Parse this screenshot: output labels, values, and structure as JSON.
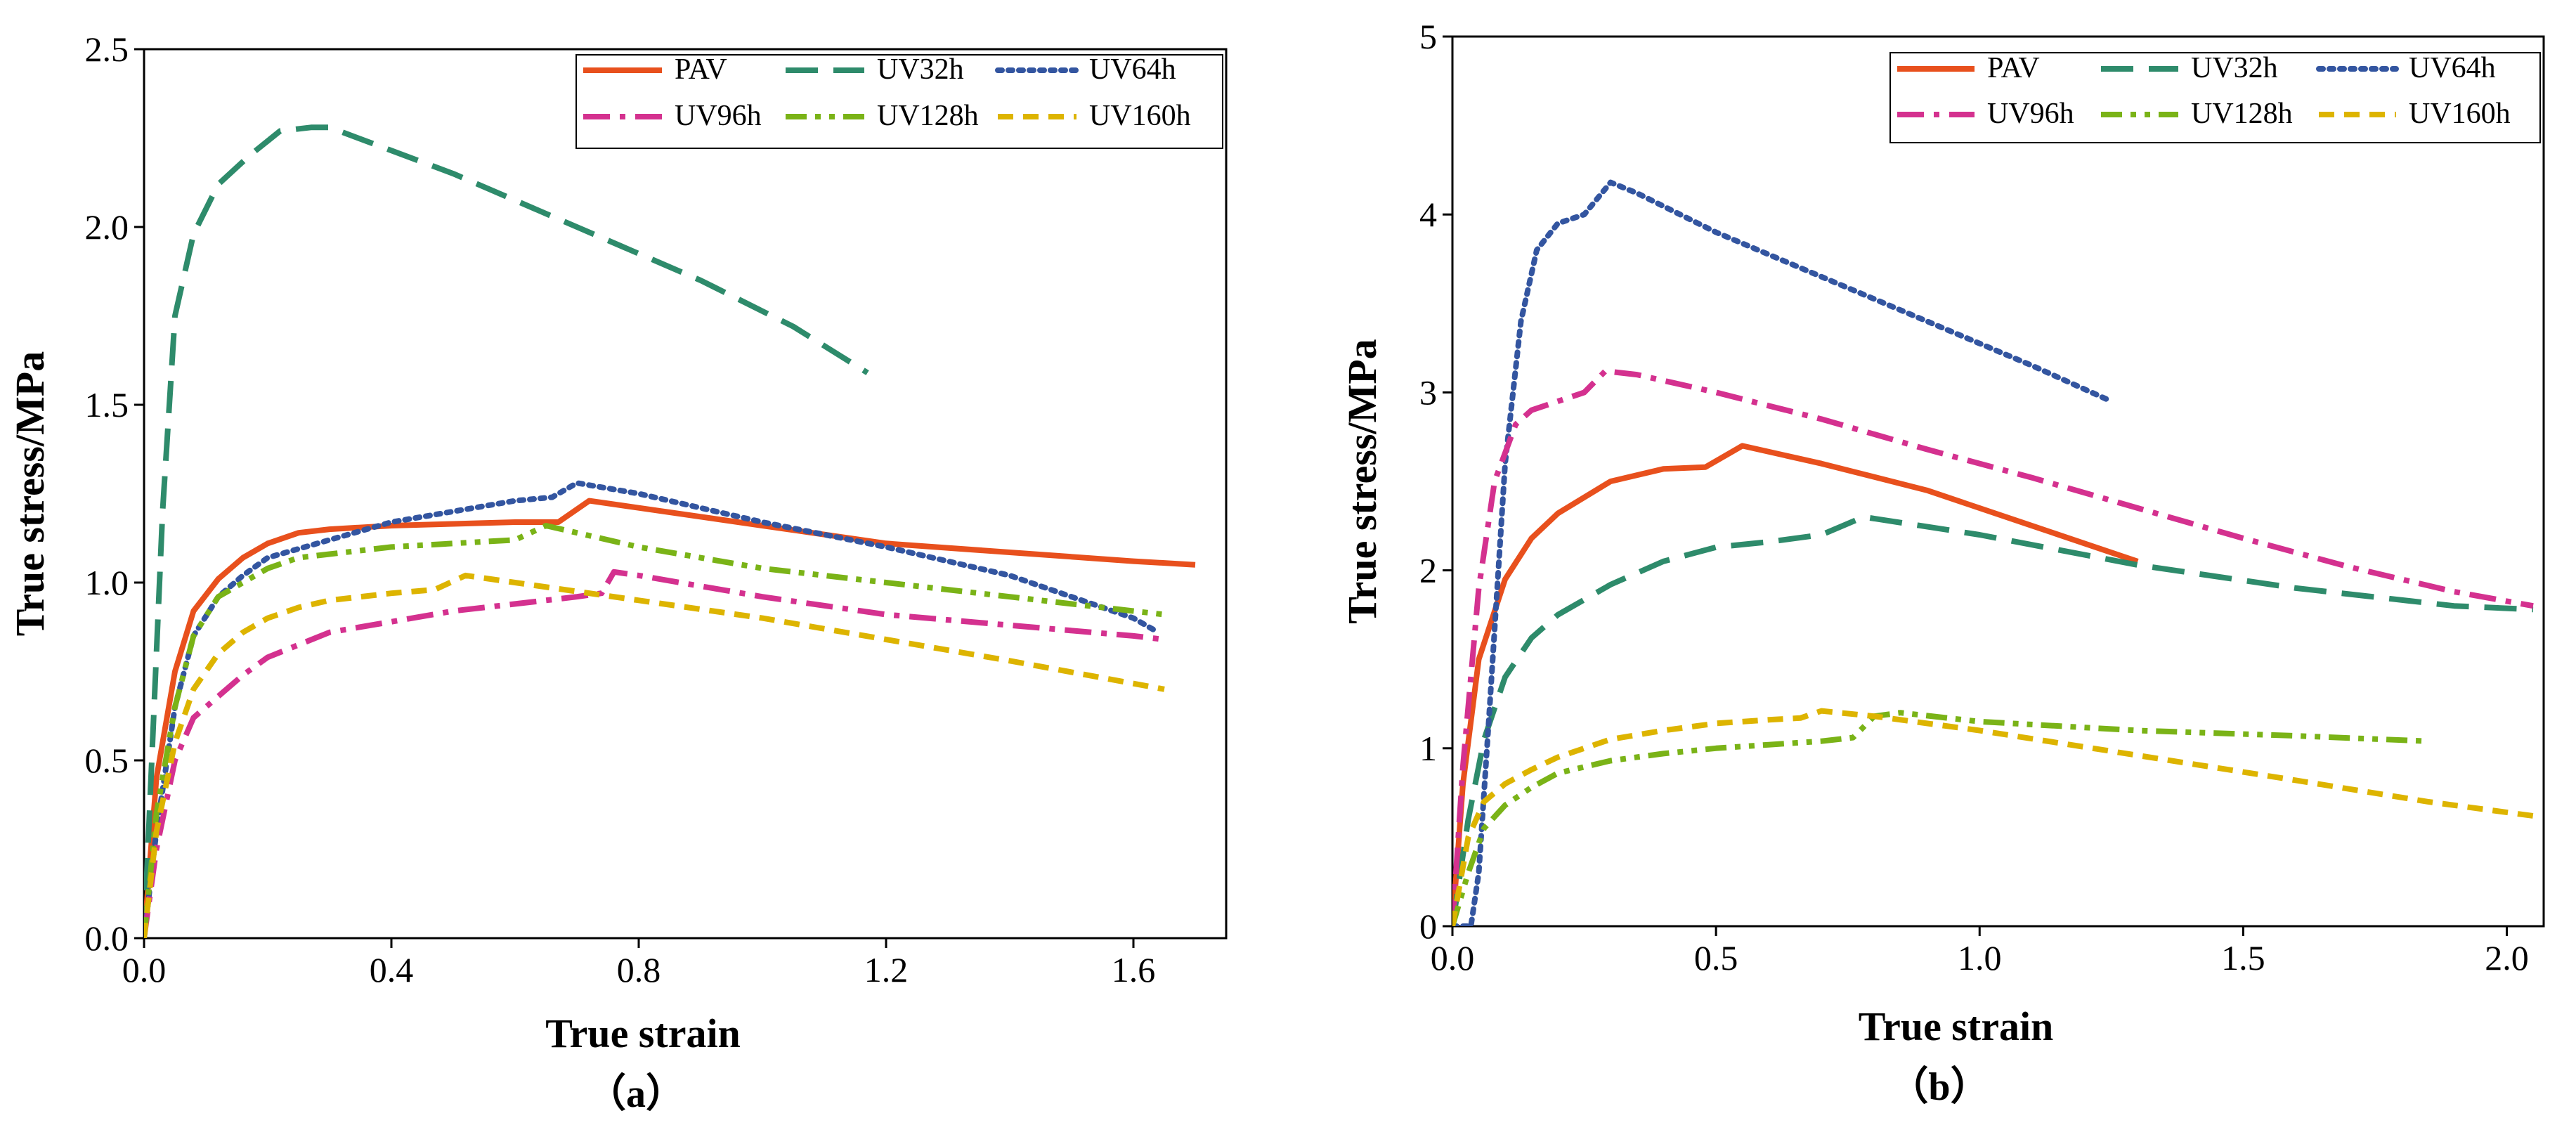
{
  "figure": {
    "caption_a": "（a）",
    "caption_b": "（b）"
  },
  "chart_data": [
    {
      "type": "line",
      "panel": "(a)",
      "xlabel": "True strain",
      "ylabel": "True stress/MPa",
      "xlim": [
        0,
        1.75
      ],
      "ylim": [
        0,
        2.5
      ],
      "xticks": [
        0.0,
        0.4,
        0.8,
        1.2,
        1.6
      ],
      "xtick_labels": [
        "0.0",
        "0.4",
        "0.8",
        "1.2",
        "1.6"
      ],
      "yticks": [
        0.0,
        0.5,
        1.0,
        1.5,
        2.0,
        2.5
      ],
      "ytick_labels": [
        "0.0",
        "0.5",
        "1.0",
        "1.5",
        "2.0",
        "2.5"
      ],
      "legend_position": "top-right",
      "series": [
        {
          "name": "PAV",
          "color": "#e8501d",
          "dash": "solid",
          "x": [
            0,
            0.02,
            0.05,
            0.08,
            0.12,
            0.16,
            0.2,
            0.25,
            0.3,
            0.4,
            0.5,
            0.6,
            0.67,
            0.72,
            0.8,
            1.0,
            1.2,
            1.4,
            1.6,
            1.7
          ],
          "y": [
            0,
            0.45,
            0.75,
            0.92,
            1.01,
            1.07,
            1.11,
            1.14,
            1.15,
            1.16,
            1.165,
            1.17,
            1.17,
            1.23,
            1.21,
            1.16,
            1.11,
            1.085,
            1.06,
            1.05
          ]
        },
        {
          "name": "UV32h",
          "color": "#2e8b6b",
          "dash": "long-dash",
          "x": [
            0,
            0.01,
            0.03,
            0.05,
            0.08,
            0.12,
            0.17,
            0.22,
            0.27,
            0.3,
            0.5,
            0.7,
            0.9,
            1.05,
            1.17
          ],
          "y": [
            0,
            0.4,
            1.2,
            1.75,
            1.98,
            2.12,
            2.2,
            2.27,
            2.28,
            2.28,
            2.15,
            2.0,
            1.85,
            1.72,
            1.59
          ]
        },
        {
          "name": "UV64h",
          "color": "#3355a0",
          "dash": "dot",
          "x": [
            0,
            0.02,
            0.05,
            0.08,
            0.12,
            0.16,
            0.2,
            0.3,
            0.4,
            0.5,
            0.6,
            0.66,
            0.7,
            0.8,
            1.0,
            1.2,
            1.4,
            1.6,
            1.64
          ],
          "y": [
            0,
            0.3,
            0.65,
            0.85,
            0.96,
            1.02,
            1.07,
            1.12,
            1.17,
            1.2,
            1.23,
            1.24,
            1.28,
            1.25,
            1.17,
            1.1,
            1.02,
            0.9,
            0.86
          ]
        },
        {
          "name": "UV96h",
          "color": "#d4318f",
          "dash": "dash-dot",
          "x": [
            0,
            0.02,
            0.05,
            0.08,
            0.12,
            0.16,
            0.2,
            0.3,
            0.4,
            0.5,
            0.6,
            0.7,
            0.74,
            0.76,
            0.8,
            1.0,
            1.2,
            1.4,
            1.6,
            1.65
          ],
          "y": [
            0,
            0.25,
            0.5,
            0.62,
            0.68,
            0.74,
            0.79,
            0.86,
            0.89,
            0.92,
            0.94,
            0.96,
            0.97,
            1.03,
            1.02,
            0.96,
            0.91,
            0.88,
            0.85,
            0.84
          ]
        },
        {
          "name": "UV128h",
          "color": "#7ab317",
          "dash": "dash-dot-dot",
          "x": [
            0,
            0.02,
            0.05,
            0.08,
            0.12,
            0.16,
            0.2,
            0.25,
            0.3,
            0.4,
            0.5,
            0.6,
            0.65,
            0.8,
            1.0,
            1.2,
            1.4,
            1.6,
            1.65
          ],
          "y": [
            0,
            0.35,
            0.65,
            0.85,
            0.96,
            1.0,
            1.04,
            1.07,
            1.08,
            1.1,
            1.11,
            1.12,
            1.16,
            1.1,
            1.04,
            1.0,
            0.96,
            0.92,
            0.91
          ]
        },
        {
          "name": "UV160h",
          "color": "#ddb400",
          "dash": "short-dash",
          "x": [
            0,
            0.02,
            0.05,
            0.08,
            0.12,
            0.16,
            0.2,
            0.25,
            0.3,
            0.4,
            0.47,
            0.52,
            0.6,
            0.8,
            1.0,
            1.2,
            1.4,
            1.65
          ],
          "y": [
            0,
            0.3,
            0.55,
            0.7,
            0.8,
            0.86,
            0.9,
            0.93,
            0.95,
            0.97,
            0.98,
            1.02,
            1.0,
            0.95,
            0.9,
            0.84,
            0.78,
            0.7
          ]
        }
      ]
    },
    {
      "type": "line",
      "panel": "(b)",
      "xlabel": "True strain",
      "ylabel": "True stress/MPa",
      "xlim": [
        0,
        2.07
      ],
      "ylim": [
        0,
        5
      ],
      "xticks": [
        0.0,
        0.5,
        1.0,
        1.5,
        2.0
      ],
      "xtick_labels": [
        "0.0",
        "0.5",
        "1.0",
        "1.5",
        "2.0"
      ],
      "yticks": [
        0,
        1,
        2,
        3,
        4,
        5
      ],
      "ytick_labels": [
        "0",
        "1",
        "2",
        "3",
        "4",
        "5"
      ],
      "legend_position": "top-right",
      "series": [
        {
          "name": "PAV",
          "color": "#e8501d",
          "dash": "solid",
          "x": [
            0,
            0.02,
            0.05,
            0.1,
            0.15,
            0.2,
            0.3,
            0.4,
            0.48,
            0.55,
            0.7,
            0.9,
            1.1,
            1.3
          ],
          "y": [
            0,
            0.8,
            1.5,
            1.95,
            2.18,
            2.32,
            2.5,
            2.57,
            2.58,
            2.7,
            2.6,
            2.45,
            2.25,
            2.05
          ]
        },
        {
          "name": "UV32h",
          "color": "#2e8b6b",
          "dash": "long-dash",
          "x": [
            0,
            0.03,
            0.06,
            0.1,
            0.15,
            0.2,
            0.3,
            0.4,
            0.5,
            0.6,
            0.7,
            0.78,
            1.0,
            1.3,
            1.6,
            1.9,
            2.05
          ],
          "y": [
            0,
            0.6,
            1.05,
            1.4,
            1.62,
            1.75,
            1.92,
            2.05,
            2.13,
            2.16,
            2.2,
            2.3,
            2.2,
            2.03,
            1.9,
            1.8,
            1.78
          ]
        },
        {
          "name": "UV64h",
          "color": "#3355a0",
          "dash": "dot",
          "x": [
            0,
            0.035,
            0.05,
            0.07,
            0.1,
            0.13,
            0.16,
            0.2,
            0.25,
            0.3,
            0.35,
            0.5,
            0.7,
            0.9,
            1.1,
            1.25
          ],
          "y": [
            0,
            0,
            0.3,
            1.2,
            2.6,
            3.4,
            3.8,
            3.95,
            4.0,
            4.18,
            4.12,
            3.9,
            3.65,
            3.4,
            3.15,
            2.95
          ]
        },
        {
          "name": "UV96h",
          "color": "#d4318f",
          "dash": "dash-dot",
          "x": [
            0,
            0.02,
            0.05,
            0.08,
            0.12,
            0.15,
            0.2,
            0.25,
            0.29,
            0.35,
            0.5,
            0.7,
            0.9,
            1.1,
            1.3,
            1.5,
            1.7,
            1.9,
            2.05
          ],
          "y": [
            0,
            0.9,
            1.9,
            2.5,
            2.82,
            2.9,
            2.95,
            3.0,
            3.12,
            3.1,
            3.0,
            2.85,
            2.68,
            2.52,
            2.35,
            2.18,
            2.02,
            1.88,
            1.8
          ]
        },
        {
          "name": "UV128h",
          "color": "#7ab317",
          "dash": "dash-dot-dot",
          "x": [
            0,
            0.03,
            0.06,
            0.1,
            0.15,
            0.2,
            0.3,
            0.4,
            0.5,
            0.6,
            0.7,
            0.76,
            0.8,
            0.85,
            1.0,
            1.3,
            1.6,
            1.85
          ],
          "y": [
            0,
            0.3,
            0.55,
            0.68,
            0.78,
            0.86,
            0.93,
            0.97,
            1.0,
            1.02,
            1.04,
            1.06,
            1.18,
            1.2,
            1.15,
            1.1,
            1.07,
            1.04
          ]
        },
        {
          "name": "UV160h",
          "color": "#ddb400",
          "dash": "short-dash",
          "x": [
            0,
            0.03,
            0.06,
            0.1,
            0.15,
            0.2,
            0.3,
            0.4,
            0.5,
            0.6,
            0.66,
            0.7,
            0.8,
            1.0,
            1.3,
            1.6,
            1.85,
            2.05
          ],
          "y": [
            0,
            0.5,
            0.7,
            0.8,
            0.88,
            0.95,
            1.05,
            1.1,
            1.14,
            1.16,
            1.17,
            1.21,
            1.18,
            1.1,
            0.96,
            0.82,
            0.7,
            0.62
          ]
        }
      ]
    }
  ]
}
